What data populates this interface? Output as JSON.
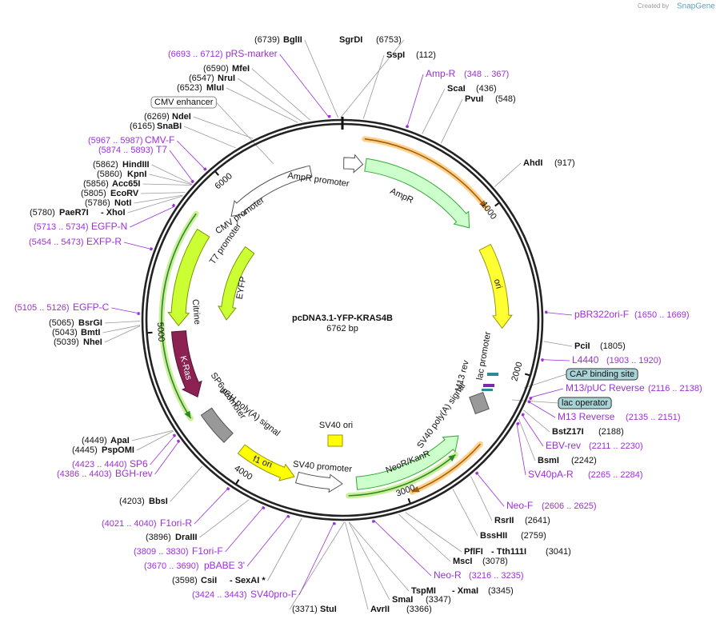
{
  "credit": {
    "prefix": "Created by",
    "brand": "SnapGene"
  },
  "map": {
    "name": "pcDNA3.1-YFP-KRAS4B",
    "length": "6762 bp",
    "ticks": [
      "1000",
      "2000",
      "3000",
      "4000",
      "5000",
      "6000"
    ]
  },
  "features": [
    "AmpR promoter",
    "AmpR",
    "ori",
    "CMV promoter",
    "T7 promoter",
    "EYFP",
    "Citrine",
    "K-Ras",
    "SP6 promoter",
    "bGH poly(A) signal",
    "f1 ori",
    "SV40 promoter",
    "SV40 ori",
    "NeoR/KanR",
    "SV40 poly(A) signal",
    "M13 rev",
    "lac promoter"
  ],
  "boxed_features": [
    {
      "name": "CMV enhancer"
    },
    {
      "name": "CAP binding site"
    },
    {
      "name": "lac operator"
    }
  ],
  "sites": [
    {
      "position": "(6739)",
      "names": [
        "BglII"
      ]
    },
    {
      "position": "(6753)",
      "names": [
        "SgrDI"
      ]
    },
    {
      "position": "(112)",
      "names": [
        "SspI"
      ]
    },
    {
      "position": "(6590)",
      "names": [
        "MfeI"
      ]
    },
    {
      "position": "(436)",
      "names": [
        "ScaI"
      ]
    },
    {
      "position": "(6547)",
      "names": [
        "NruI"
      ]
    },
    {
      "position": "(6523)",
      "names": [
        "MluI"
      ]
    },
    {
      "position": "(548)",
      "names": [
        "PvuI"
      ]
    },
    {
      "position": "(6269)",
      "names": [
        "NdeI"
      ]
    },
    {
      "position": "(6165)",
      "names": [
        "SnaBI"
      ]
    },
    {
      "position": "(917)",
      "names": [
        "AhdI"
      ]
    },
    {
      "position": "(5862)",
      "names": [
        "HindIII"
      ]
    },
    {
      "position": "(5860)",
      "names": [
        "KpnI"
      ]
    },
    {
      "position": "(5856)",
      "names": [
        "Acc65I"
      ]
    },
    {
      "position": "(5805)",
      "names": [
        "EcoRV"
      ]
    },
    {
      "position": "(5786)",
      "names": [
        "NotI"
      ]
    },
    {
      "position": "(5780)",
      "names": [
        "PaeR7I",
        "- XhoI"
      ]
    },
    {
      "position": "(5065)",
      "names": [
        "BsrGI"
      ]
    },
    {
      "position": "(5043)",
      "names": [
        "BmtI"
      ]
    },
    {
      "position": "(5039)",
      "names": [
        "NheI"
      ]
    },
    {
      "position": "(1805)",
      "names": [
        "PciI"
      ]
    },
    {
      "position": "(2188)",
      "names": [
        "BstZ17I"
      ]
    },
    {
      "position": "(2242)",
      "names": [
        "BsmI"
      ]
    },
    {
      "position": "(2641)",
      "names": [
        "RsrII"
      ]
    },
    {
      "position": "(2759)",
      "names": [
        "BssHII"
      ]
    },
    {
      "position": "(3041)",
      "names": [
        "PflFI",
        "- Tth111I"
      ]
    },
    {
      "position": "(3078)",
      "names": [
        "MscI"
      ]
    },
    {
      "position": "(3345)",
      "names": [
        "TspMI",
        "- XmaI"
      ]
    },
    {
      "position": "(3347)",
      "names": [
        "SmaI"
      ]
    },
    {
      "position": "(3366)",
      "names": [
        "AvrII"
      ]
    },
    {
      "position": "(3371)",
      "names": [
        "StuI"
      ]
    },
    {
      "position": "(3598)",
      "names": [
        "CsiI",
        "- SexAI *"
      ]
    },
    {
      "position": "(3896)",
      "names": [
        "DraIII"
      ]
    },
    {
      "position": "(4203)",
      "names": [
        "BbsI"
      ]
    },
    {
      "position": "(4445)",
      "names": [
        "PspOMI"
      ]
    },
    {
      "position": "(4449)",
      "names": [
        "ApaI"
      ]
    }
  ],
  "primers": [
    {
      "range": "(6693 .. 6712)",
      "name": "pRS-marker"
    },
    {
      "range": "(348 .. 367)",
      "name": "Amp-R"
    },
    {
      "range": "(5967 .. 5987)",
      "name": "CMV-F"
    },
    {
      "range": "(5874 .. 5893)",
      "name": "T7"
    },
    {
      "range": "(5713 .. 5734)",
      "name": "EGFP-N"
    },
    {
      "range": "(5454 .. 5473)",
      "name": "EXFP-R"
    },
    {
      "range": "(5105 .. 5126)",
      "name": "EGFP-C"
    },
    {
      "range": "(1650 .. 1669)",
      "name": "pBR322ori-F"
    },
    {
      "range": "(1903 .. 1920)",
      "name": "L4440"
    },
    {
      "range": "(2116 .. 2138)",
      "name": "M13/pUC Reverse"
    },
    {
      "range": "(2135 .. 2151)",
      "name": "M13 Reverse"
    },
    {
      "range": "(2211 .. 2230)",
      "name": "EBV-rev"
    },
    {
      "range": "(2265 .. 2284)",
      "name": "SV40pA-R"
    },
    {
      "range": "(2606 .. 2625)",
      "name": "Neo-F"
    },
    {
      "range": "(3216 .. 3235)",
      "name": "Neo-R"
    },
    {
      "range": "(3424 .. 3443)",
      "name": "SV40pro-F"
    },
    {
      "range": "(3670 .. 3690)",
      "name": "pBABE 3'"
    },
    {
      "range": "(3809 .. 3830)",
      "name": "F1ori-F"
    },
    {
      "range": "(4021 .. 4040)",
      "name": "F1ori-R"
    },
    {
      "range": "(4386 .. 4403)",
      "name": "BGH-rev"
    },
    {
      "range": "(4423 .. 4440)",
      "name": "SP6"
    }
  ]
}
